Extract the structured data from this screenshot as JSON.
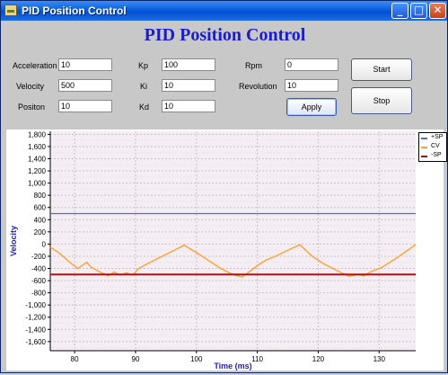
{
  "window": {
    "title": "PID Position Control",
    "minimize": "_",
    "maximize": "□",
    "close": "✕"
  },
  "header": {
    "title": "PID Position Control"
  },
  "form": {
    "acceleration": {
      "label": "Acceleration",
      "value": "10"
    },
    "velocity": {
      "label": "Velocity",
      "value": "500"
    },
    "position": {
      "label": "Positon",
      "value": "10"
    },
    "kp": {
      "label": "Kp",
      "value": "100"
    },
    "ki": {
      "label": "Ki",
      "value": "10"
    },
    "kd": {
      "label": "Kd",
      "value": "10"
    },
    "rpm": {
      "label": "Rpm",
      "value": "0"
    },
    "revolution": {
      "label": "Revolution",
      "value": "10"
    }
  },
  "buttons": {
    "start": "Start",
    "stop": "Stop",
    "apply": "Apply"
  },
  "colors": {
    "sp_plus": "#4a72c8",
    "cv": "#ffa030",
    "sp_minus": "#b01010",
    "title": "#1a1ad8"
  },
  "chart_data": {
    "type": "line",
    "title": "",
    "xlabel": "Time (ms)",
    "ylabel": "Velocity",
    "xlim": [
      76,
      136
    ],
    "ylim": [
      -1750,
      1850
    ],
    "xticks": [
      80,
      90,
      100,
      110,
      120,
      130
    ],
    "yticks": [
      1800,
      1600,
      1400,
      1200,
      1000,
      800,
      600,
      400,
      200,
      0,
      -200,
      -400,
      -600,
      -800,
      -1000,
      -1200,
      -1400,
      -1600
    ],
    "grid": true,
    "legend_position": "top-right",
    "series": [
      {
        "name": "+SP",
        "x": [
          76,
          136
        ],
        "y": [
          500,
          500
        ]
      },
      {
        "name": "CV",
        "x": [
          76,
          77.5,
          79,
          80.5,
          82,
          82.7,
          84,
          85.5,
          86.5,
          87.5,
          88.5,
          89.5,
          90.5,
          92,
          94,
          96,
          98,
          100,
          102,
          104,
          106,
          107.5,
          109,
          110.5,
          111.5,
          113,
          115,
          117,
          119,
          121,
          123,
          125,
          126.5,
          127.5,
          128.5,
          130.5,
          133,
          136
        ],
        "y": [
          -50,
          -150,
          -280,
          -400,
          -300,
          -380,
          -450,
          -520,
          -460,
          -510,
          -470,
          -510,
          -400,
          -320,
          -220,
          -120,
          -20,
          -140,
          -270,
          -400,
          -500,
          -540,
          -430,
          -320,
          -260,
          -200,
          -100,
          -10,
          -200,
          -330,
          -430,
          -530,
          -500,
          -520,
          -460,
          -380,
          -220,
          -10
        ]
      },
      {
        "name": "-SP",
        "x": [
          76,
          136
        ],
        "y": [
          -500,
          -500
        ]
      }
    ]
  }
}
